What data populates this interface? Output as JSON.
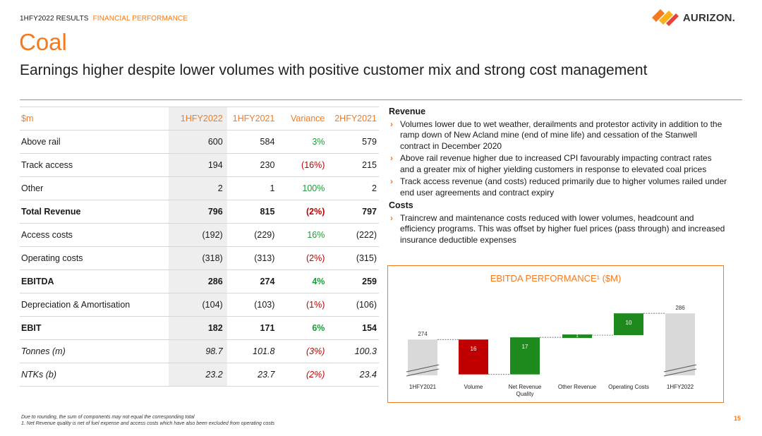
{
  "header": {
    "section": "1HFY2022 RESULTS",
    "subsection": "FINANCIAL PERFORMANCE",
    "logo_text": "AURIZON.",
    "title": "Coal",
    "subtitle": "Earnings higher despite lower volumes with positive customer mix and strong cost management"
  },
  "table": {
    "headers": [
      "$m",
      "1HFY2022",
      "1HFY2021",
      "Variance",
      "2HFY2021"
    ],
    "rows": [
      {
        "label": "Above rail",
        "c1": "600",
        "c2": "584",
        "var": "3%",
        "c4": "579"
      },
      {
        "label": "Track access",
        "c1": "194",
        "c2": "230",
        "var": "(16%)",
        "c4": "215"
      },
      {
        "label": "Other",
        "c1": "2",
        "c2": "1",
        "var": "100%",
        "c4": "2"
      },
      {
        "label": "Total Revenue",
        "c1": "796",
        "c2": "815",
        "var": "(2%)",
        "c4": "797"
      },
      {
        "label": "Access costs",
        "c1": "(192)",
        "c2": "(229)",
        "var": "16%",
        "c4": "(222)"
      },
      {
        "label": "Operating costs",
        "c1": "(318)",
        "c2": "(313)",
        "var": "(2%)",
        "c4": "(315)"
      },
      {
        "label": "EBITDA",
        "c1": "286",
        "c2": "274",
        "var": "4%",
        "c4": "259"
      },
      {
        "label": "Depreciation & Amortisation",
        "c1": "(104)",
        "c2": "(103)",
        "var": "(1%)",
        "c4": "(106)"
      },
      {
        "label": "EBIT",
        "c1": "182",
        "c2": "171",
        "var": "6%",
        "c4": "154"
      },
      {
        "label": "Tonnes (m)",
        "c1": "98.7",
        "c2": "101.8",
        "var": "(3%)",
        "c4": "100.3"
      },
      {
        "label": "NTKs (b)",
        "c1": "23.2",
        "c2": "23.7",
        "var": "(2%)",
        "c4": "23.4"
      }
    ]
  },
  "commentary": {
    "revenue_heading": "Revenue",
    "revenue_points": [
      "Volumes lower due to wet weather, derailments and protestor activity in addition to the ramp down of New Acland mine (end of mine life) and cessation of the Stanwell contract in December 2020",
      "Above rail revenue higher due to increased CPI favourably impacting contract rates and a greater mix of higher yielding customers in response to elevated coal prices",
      "Track access revenue (and costs) reduced primarily due to higher volumes railed under end user agreements and contract expiry"
    ],
    "costs_heading": "Costs",
    "costs_points": [
      "Traincrew and maintenance costs reduced with lower volumes, headcount and efficiency programs. This was offset by higher fuel prices (pass through) and increased insurance deductible expenses"
    ]
  },
  "chart_data": {
    "type": "waterfall",
    "title": "EBITDA PERFORMANCE¹ ($M)",
    "categories": [
      "1HFY2021",
      "Volume",
      "Net Revenue Quality",
      "Other Revenue",
      "Operating Costs",
      "1HFY2022"
    ],
    "category_lines": [
      [
        "1HFY2021"
      ],
      [
        "Volume"
      ],
      [
        "Net Revenue",
        "Quality"
      ],
      [
        "Other Revenue"
      ],
      [
        "Operating Costs"
      ],
      [
        "1HFY2022"
      ]
    ],
    "values": [
      274,
      -16,
      17,
      1,
      10,
      286
    ],
    "labels": [
      "274",
      "16",
      "17",
      "1",
      "10",
      "286"
    ],
    "kinds": [
      "total",
      "decrease",
      "increase",
      "increase",
      "increase",
      "total"
    ],
    "colors": {
      "total": "#d9d9d9",
      "increase": "#1e8a1e",
      "decrease": "#c00000"
    },
    "axis_break": true
  },
  "footnotes": [
    "Due to rounding, the sum of components may not equal the corresponding total",
    "1. Net Revenue quality is net of fuel expense and access costs which have also been excluded from operating costs"
  ],
  "page_number": "15"
}
